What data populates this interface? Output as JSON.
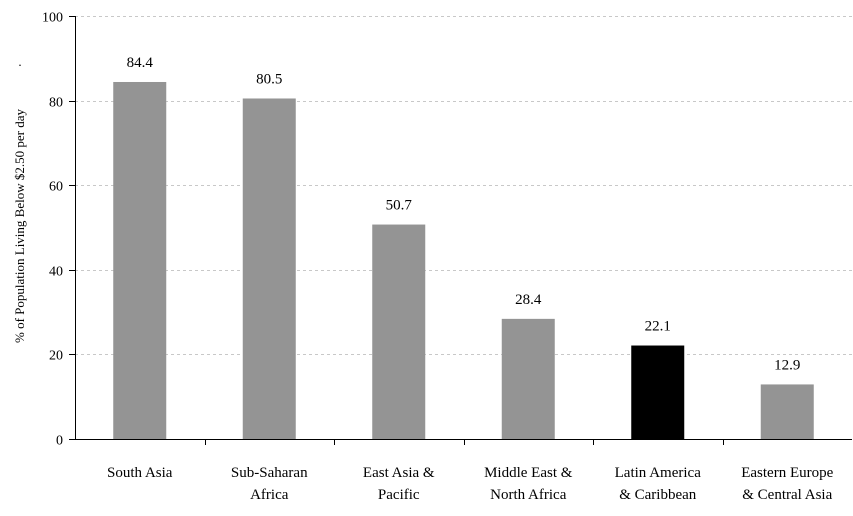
{
  "chart_data": {
    "type": "bar",
    "title": "",
    "xlabel": "",
    "ylabel": "% of Population Living Below $2.50 per day",
    "ylim": [
      0,
      100
    ],
    "yticks": [
      0,
      20,
      40,
      60,
      80,
      100
    ],
    "grid": "horizontal dashed",
    "categories": [
      [
        "South Asia"
      ],
      [
        "Sub-Saharan",
        "Africa"
      ],
      [
        "East Asia &",
        "Pacific"
      ],
      [
        "Middle East &",
        "North Africa"
      ],
      [
        "Latin America",
        "& Caribbean"
      ],
      [
        "Eastern Europe",
        "& Central Asia"
      ]
    ],
    "values": [
      84.4,
      80.5,
      50.7,
      28.4,
      22.1,
      12.9
    ],
    "data_labels": [
      "84.4",
      "80.5",
      "50.7",
      "28.4",
      "22.1",
      "12.9"
    ],
    "colors": [
      "#949494",
      "#949494",
      "#949494",
      "#949494",
      "#000000",
      "#949494"
    ],
    "highlight_category": "Latin America & Caribbean",
    "stray_mark": "."
  }
}
